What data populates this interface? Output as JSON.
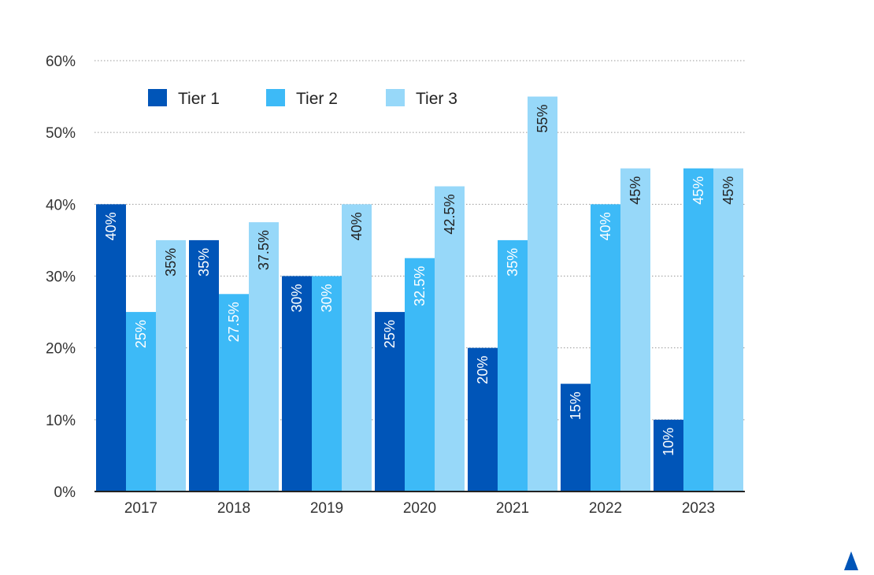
{
  "chart_data": {
    "type": "bar",
    "categories": [
      "2017",
      "2018",
      "2019",
      "2020",
      "2021",
      "2022",
      "2023"
    ],
    "series": [
      {
        "name": "Tier 1",
        "color": "#0055B8",
        "label_color": "#ffffff",
        "values": [
          40,
          35,
          30,
          25,
          20,
          15,
          10
        ],
        "labels": [
          "40%",
          "35%",
          "30%",
          "25%",
          "20%",
          "15%",
          "10%"
        ]
      },
      {
        "name": "Tier 2",
        "color": "#3DBAF7",
        "label_color": "#ffffff",
        "values": [
          25,
          27.5,
          30,
          32.5,
          35,
          40,
          45
        ],
        "labels": [
          "25%",
          "27.5%",
          "30%",
          "32.5%",
          "35%",
          "40%",
          "45%"
        ]
      },
      {
        "name": "Tier 3",
        "color": "#97D8F9",
        "label_color": "#222222",
        "values": [
          35,
          37.5,
          40,
          42.5,
          55,
          45,
          45
        ],
        "labels": [
          "35%",
          "37.5%",
          "40%",
          "42.5%",
          "55%",
          "45%",
          "45%"
        ]
      }
    ],
    "ylim": [
      0,
      60
    ],
    "yticks": [
      0,
      10,
      20,
      30,
      40,
      50,
      60
    ],
    "ytick_labels": [
      "0%",
      "10%",
      "20%",
      "30%",
      "40%",
      "50%",
      "60%"
    ],
    "grid": true,
    "legend_position": "top-left",
    "title": "",
    "xlabel": "",
    "ylabel": ""
  },
  "logo": {
    "icon": "triangle-logo-icon",
    "color": "#0055B8"
  }
}
